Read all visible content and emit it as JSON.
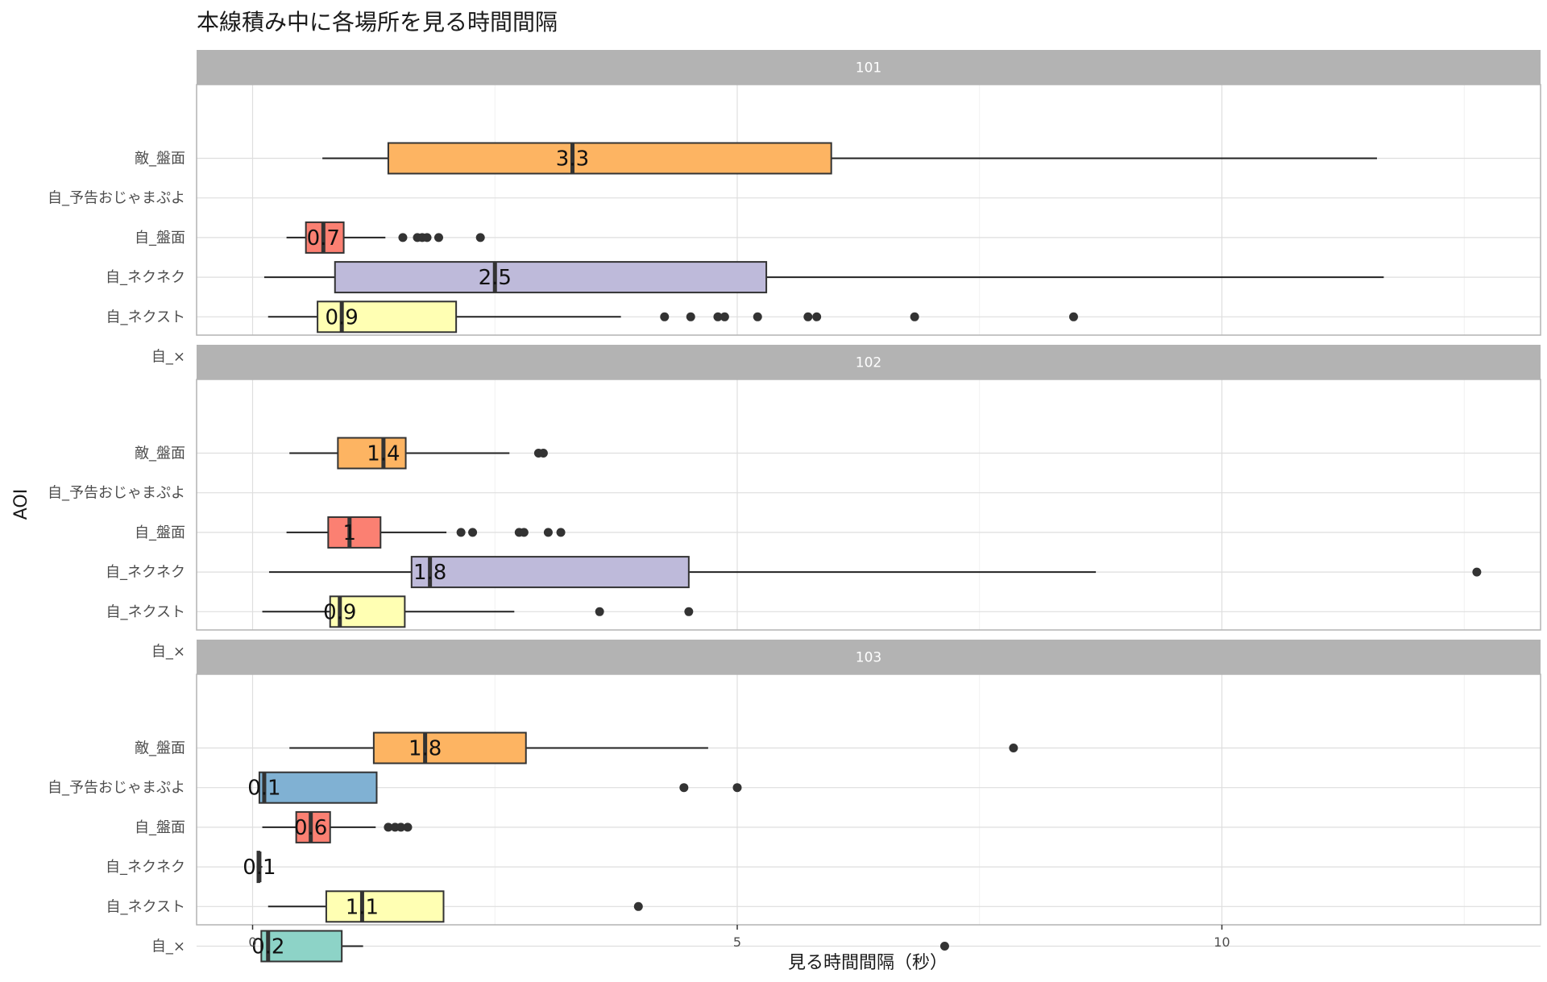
{
  "chart_data": {
    "type": "boxplot",
    "title": "本線積み中に各場所を見る時間間隔",
    "xlabel": "見る時間間隔（秒）",
    "ylabel": "AOI",
    "xlim": [
      -0.6,
      13.3
    ],
    "x_ticks": [
      0,
      5,
      10
    ],
    "categories": [
      "敵_盤面",
      "自_予告おじゃまぷよ",
      "自_盤面",
      "自_ネクネク",
      "自_ネクスト",
      "自_×"
    ],
    "colors": {
      "敵_盤面": "#fdb462",
      "自_予告おじゃまぷよ": "#80b1d3",
      "自_盤面": "#fb8072",
      "自_ネクネク": "#bebada",
      "自_ネクスト": "#ffffb3",
      "自_×": "#8dd3c7"
    },
    "grid": true,
    "facets": [
      {
        "label": "101",
        "boxes": [
          {
            "category": "敵_盤面",
            "whisker_low": 0.72,
            "q1": 1.4,
            "median": 3.3,
            "q3": 5.97,
            "whisker_high": 11.6,
            "median_label": "3.3",
            "outliers": []
          },
          {
            "category": "自_盤面",
            "whisker_low": 0.35,
            "q1": 0.55,
            "median": 0.73,
            "q3": 0.94,
            "whisker_high": 1.37,
            "median_label": "0.7",
            "outliers": [
              1.55,
              1.7,
              1.75,
              1.8,
              1.92,
              2.35
            ]
          },
          {
            "category": "自_ネクネク",
            "whisker_low": 0.12,
            "q1": 0.85,
            "median": 2.5,
            "q3": 5.3,
            "whisker_high": 11.67,
            "median_label": "2.5",
            "outliers": []
          },
          {
            "category": "自_ネクスト",
            "whisker_low": 0.16,
            "q1": 0.67,
            "median": 0.92,
            "q3": 2.1,
            "whisker_high": 3.8,
            "median_label": "0.9",
            "outliers": [
              4.25,
              4.52,
              4.8,
              4.87,
              5.21,
              5.73,
              5.82,
              6.83,
              8.47
            ]
          }
        ]
      },
      {
        "label": "102",
        "boxes": [
          {
            "category": "敵_盤面",
            "whisker_low": 0.38,
            "q1": 0.88,
            "median": 1.35,
            "q3": 1.58,
            "whisker_high": 2.65,
            "median_label": "1.4",
            "outliers": [
              2.95,
              3.0
            ]
          },
          {
            "category": "自_盤面",
            "whisker_low": 0.35,
            "q1": 0.78,
            "median": 1.0,
            "q3": 1.32,
            "whisker_high": 2.0,
            "median_label": "1",
            "outliers": [
              2.15,
              2.27,
              2.75,
              2.8,
              3.05,
              3.18
            ]
          },
          {
            "category": "自_ネクネク",
            "whisker_low": 0.17,
            "q1": 1.64,
            "median": 1.83,
            "q3": 4.5,
            "whisker_high": 8.7,
            "median_label": "1.8",
            "outliers": [
              12.63
            ]
          },
          {
            "category": "自_ネクスト",
            "whisker_low": 0.1,
            "q1": 0.8,
            "median": 0.9,
            "q3": 1.57,
            "whisker_high": 2.7,
            "median_label": "0.9",
            "outliers": [
              3.58,
              4.5
            ]
          }
        ]
      },
      {
        "label": "103",
        "boxes": [
          {
            "category": "敵_盤面",
            "whisker_low": 0.38,
            "q1": 1.25,
            "median": 1.78,
            "q3": 2.82,
            "whisker_high": 4.7,
            "median_label": "1.8",
            "outliers": [
              7.85
            ]
          },
          {
            "category": "自_予告おじゃまぷよ",
            "whisker_low": 0.07,
            "q1": 0.07,
            "median": 0.12,
            "q3": 1.28,
            "whisker_high": 1.28,
            "median_label": "0.1",
            "outliers": [
              4.45,
              5.0
            ]
          },
          {
            "category": "自_盤面",
            "whisker_low": 0.1,
            "q1": 0.45,
            "median": 0.6,
            "q3": 0.8,
            "whisker_high": 1.27,
            "median_label": "0.6",
            "outliers": [
              1.4,
              1.47,
              1.53,
              1.6
            ]
          },
          {
            "category": "自_ネクネク",
            "whisker_low": 0.05,
            "q1": 0.05,
            "median": 0.07,
            "q3": 0.07,
            "whisker_high": 0.1,
            "median_label": "0.1",
            "outliers": []
          },
          {
            "category": "自_ネクスト",
            "whisker_low": 0.16,
            "q1": 0.76,
            "median": 1.13,
            "q3": 1.97,
            "whisker_high": 1.97,
            "median_label": "1.1",
            "outliers": [
              3.98
            ]
          },
          {
            "category": "自_×",
            "whisker_low": 0.09,
            "q1": 0.09,
            "median": 0.16,
            "q3": 0.92,
            "whisker_high": 1.14,
            "median_label": "0.2",
            "outliers": [
              7.14
            ]
          }
        ]
      }
    ]
  }
}
